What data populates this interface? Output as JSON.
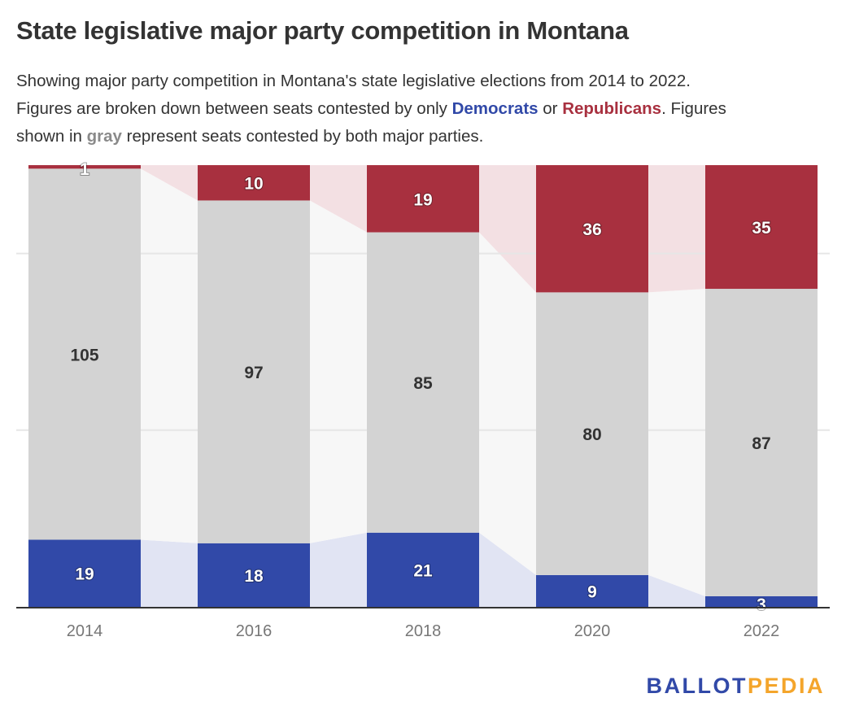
{
  "header": {
    "title": "State legislative major party competition in Montana",
    "subtitle_parts": {
      "line1": "Showing major party competition in Montana's state legislative elections from 2014 to 2022.",
      "line2a": "Figures are broken down between seats contested by only ",
      "democrats": "Democrats",
      "or": " or ",
      "republicans": "Republicans",
      "line2b": ". Figures",
      "line3a": "shown in ",
      "gray": "gray",
      "line3b": " represent seats contested by both major parties."
    }
  },
  "colors": {
    "democrat": "#3149A8",
    "republican": "#A8303F",
    "both": "#D3D3D3",
    "democrat_band": "#E1E4F3",
    "republican_band": "#F3E0E3",
    "both_band": "#F7F7F7",
    "gridline": "#E6E6E6",
    "axis": "#333333"
  },
  "logo": {
    "part1": "BALLOT",
    "part2": "PEDIA"
  },
  "chart_data": {
    "type": "bar",
    "stacked": true,
    "title": "State legislative major party competition in Montana",
    "xlabel": "",
    "ylabel": "",
    "categories": [
      "2014",
      "2016",
      "2018",
      "2020",
      "2022"
    ],
    "series": [
      {
        "name": "Democrats only",
        "color": "#3149A8",
        "values": [
          19,
          18,
          21,
          9,
          3
        ]
      },
      {
        "name": "Both major parties",
        "color": "#D3D3D3",
        "values": [
          105,
          97,
          85,
          80,
          87
        ]
      },
      {
        "name": "Republicans only",
        "color": "#A8303F",
        "values": [
          1,
          10,
          19,
          36,
          35
        ]
      }
    ],
    "ylim": [
      0,
      125
    ],
    "gridlines": [
      50,
      100
    ],
    "grid": true,
    "y_tick_labels_shown": false,
    "data_labels": true,
    "legend": "inline in subtitle"
  }
}
